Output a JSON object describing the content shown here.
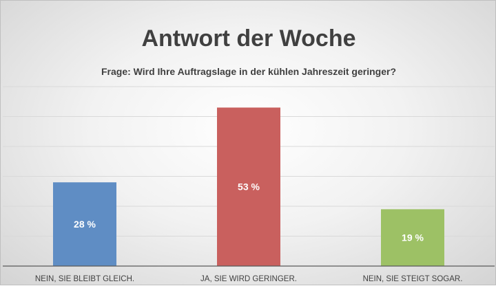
{
  "chart_data": {
    "type": "bar",
    "title": "Antwort der Woche",
    "subtitle": "Frage: Wird Ihre Auftragslage in der kühlen Jahreszeit geringer?",
    "categories": [
      "NEIN, SIE BLEIBT GLEICH.",
      "JA, SIE WIRD GERINGER.",
      "NEIN, SIE STEIGT SOGAR."
    ],
    "values": [
      28,
      53,
      19
    ],
    "data_labels": [
      "28 %",
      "53 %",
      "19 %"
    ],
    "colors": [
      "#5f8dc4",
      "#c9605e",
      "#9dc165"
    ],
    "xlabel": "",
    "ylabel": "",
    "ylim": [
      0,
      60
    ],
    "grid": true,
    "grid_step": 10
  }
}
